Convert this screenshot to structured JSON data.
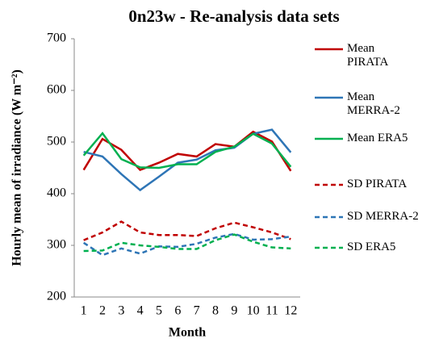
{
  "chart_data": {
    "type": "line",
    "title": "0n23w - Re-analysis data sets",
    "x_label": "Month",
    "y_label": "Hourly mean of irradiance (W m⁻²)",
    "categories": [
      "1",
      "2",
      "3",
      "4",
      "5",
      "6",
      "7",
      "8",
      "9",
      "10",
      "11",
      "12"
    ],
    "ylim": [
      200,
      700
    ],
    "yticks": [
      200,
      300,
      400,
      500,
      600,
      700
    ],
    "grid": false,
    "legend": "right",
    "series": [
      {
        "name": "Mean PIRATA",
        "color": "#c00000",
        "dash": false,
        "values": [
          446,
          506,
          485,
          446,
          460,
          477,
          472,
          496,
          491,
          520,
          501,
          444
        ]
      },
      {
        "name": "Mean MERRA-2",
        "color": "#2e75b6",
        "dash": false,
        "values": [
          481,
          472,
          438,
          407,
          433,
          460,
          466,
          484,
          489,
          516,
          524,
          480
        ]
      },
      {
        "name": "Mean ERA5",
        "color": "#00b050",
        "dash": false,
        "values": [
          474,
          517,
          467,
          451,
          450,
          457,
          457,
          481,
          491,
          516,
          497,
          452
        ]
      },
      {
        "name": "SD PIRATA",
        "color": "#c00000",
        "dash": true,
        "values": [
          310,
          325,
          346,
          325,
          320,
          320,
          318,
          333,
          344,
          335,
          325,
          312
        ]
      },
      {
        "name": "SD MERRA-2",
        "color": "#2e75b6",
        "dash": true,
        "values": [
          305,
          281,
          294,
          284,
          298,
          297,
          303,
          315,
          322,
          311,
          312,
          317
        ]
      },
      {
        "name": "SD ERA5",
        "color": "#00b050",
        "dash": true,
        "values": [
          289,
          290,
          305,
          300,
          297,
          293,
          293,
          310,
          321,
          307,
          296,
          294
        ]
      }
    ]
  }
}
